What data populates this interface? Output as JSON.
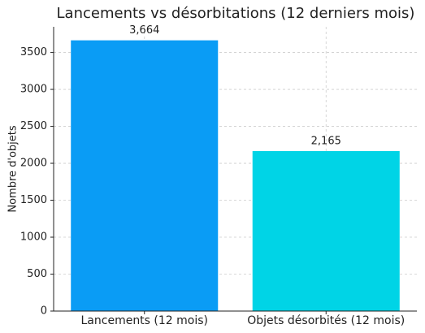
{
  "chart_data": {
    "type": "bar",
    "title": "Lancements vs désorbitations (12 derniers mois)",
    "y_label": "Nombre d'objets",
    "categories": [
      "Lancements (12 mois)",
      "Objets désorbités (12 mois)"
    ],
    "values": [
      3664,
      2165
    ],
    "value_labels": [
      "3,664",
      "2,165"
    ],
    "colors": [
      "#0a9cf5",
      "#00d4e6"
    ],
    "ylim": [
      0,
      3847
    ],
    "yticks": [
      0,
      500,
      1000,
      1500,
      2000,
      2500,
      3000,
      3500
    ],
    "grid": true
  }
}
